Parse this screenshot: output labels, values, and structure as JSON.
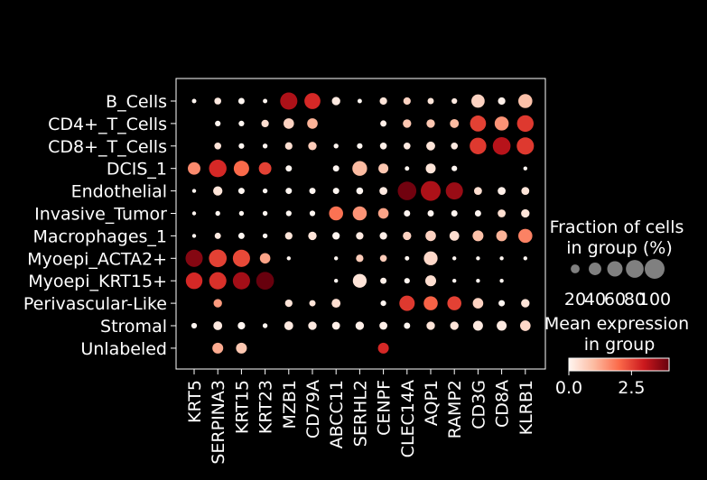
{
  "chart_data": {
    "type": "dotplot",
    "genes": [
      "KRT5",
      "SERPINA3",
      "KRT15",
      "KRT23",
      "MZB1",
      "CD79A",
      "ABCC11",
      "SERHL2",
      "CENPF",
      "CLEC14A",
      "AQP1",
      "RAMP2",
      "CD3G",
      "CD8A",
      "KLRB1"
    ],
    "groups": [
      "B_Cells",
      "CD4+_T_Cells",
      "CD8+_T_Cells",
      "DCIS_1",
      "Endothelial",
      "Invasive_Tumor",
      "Macrophages_1",
      "Myoepi_ACTA2+",
      "Myoepi_KRT15+",
      "Perivascular-Like",
      "Stromal",
      "Unlabeled"
    ],
    "fraction_pct": [
      [
        5,
        12,
        10,
        5,
        75,
        65,
        18,
        5,
        14,
        14,
        10,
        8,
        45,
        14,
        50
      ],
      [
        0,
        8,
        8,
        14,
        28,
        28,
        0,
        0,
        10,
        18,
        18,
        20,
        65,
        50,
        70
      ],
      [
        0,
        12,
        8,
        6,
        14,
        18,
        6,
        8,
        12,
        12,
        20,
        12,
        70,
        80,
        75
      ],
      [
        40,
        78,
        60,
        40,
        10,
        0,
        10,
        55,
        25,
        5,
        25,
        8,
        0,
        0,
        4
      ],
      [
        4,
        22,
        10,
        6,
        10,
        10,
        10,
        12,
        16,
        88,
        100,
        75,
        16,
        16,
        16
      ],
      [
        4,
        6,
        6,
        6,
        8,
        8,
        50,
        50,
        28,
        10,
        10,
        10,
        10,
        16,
        18
      ],
      [
        4,
        10,
        10,
        6,
        14,
        18,
        14,
        14,
        14,
        18,
        28,
        24,
        30,
        30,
        50
      ],
      [
        75,
        80,
        75,
        28,
        4,
        0,
        4,
        14,
        12,
        5,
        48,
        4,
        4,
        4,
        4
      ],
      [
        70,
        75,
        75,
        80,
        0,
        0,
        4,
        48,
        10,
        8,
        30,
        4,
        4,
        4,
        0
      ],
      [
        0,
        18,
        0,
        0,
        14,
        10,
        20,
        0,
        8,
        60,
        50,
        50,
        28,
        10,
        18
      ],
      [
        8,
        20,
        14,
        6,
        20,
        18,
        16,
        18,
        16,
        10,
        18,
        18,
        25,
        25,
        28
      ],
      [
        0,
        30,
        30,
        0,
        0,
        0,
        0,
        0,
        30,
        0,
        0,
        0,
        0,
        0,
        0
      ]
    ],
    "mean_expression": [
      [
        0,
        0.2,
        0,
        0,
        3.3,
        2.8,
        0.2,
        0,
        0.3,
        0.6,
        0.3,
        0.2,
        0.6,
        0.1,
        0.9
      ],
      [
        0,
        0,
        0,
        0.4,
        0.6,
        1.1,
        0,
        0,
        0.1,
        0.8,
        0.8,
        1.0,
        2.5,
        1.5,
        2.6
      ],
      [
        0,
        0.3,
        0,
        0,
        0.4,
        0.7,
        0,
        0,
        0.1,
        0.2,
        0.3,
        0.2,
        2.6,
        3.2,
        2.6
      ],
      [
        1.6,
        2.8,
        2.0,
        2.5,
        0,
        0,
        0,
        1.0,
        0.8,
        0,
        0.3,
        0,
        0,
        0,
        0
      ],
      [
        0,
        0.3,
        0,
        0,
        0,
        0,
        0,
        0,
        0.2,
        3.9,
        3.3,
        3.5,
        0.4,
        0.1,
        0.3
      ],
      [
        0,
        0,
        0,
        0,
        0,
        0,
        1.9,
        1.5,
        1.3,
        0,
        0,
        0,
        0,
        0.4,
        0.3
      ],
      [
        0,
        0.2,
        0,
        0,
        0.3,
        0.3,
        0,
        0.2,
        0.1,
        0.6,
        0.6,
        0.4,
        0.9,
        1.1,
        1.7
      ],
      [
        3.7,
        2.5,
        2.4,
        1.3,
        0,
        0,
        0,
        0.7,
        0.7,
        0,
        0.5,
        0,
        0,
        0,
        0
      ],
      [
        2.8,
        2.7,
        3.4,
        4.0,
        0,
        0,
        0,
        0.3,
        0.1,
        0,
        0.4,
        0,
        0,
        0,
        0
      ],
      [
        0,
        1.4,
        0,
        0,
        0.3,
        0.3,
        0.4,
        0,
        0,
        2.6,
        2.1,
        2.5,
        0.6,
        0,
        0.3
      ],
      [
        0,
        0.2,
        0,
        0,
        0.2,
        0.2,
        0.1,
        0.1,
        0.1,
        0,
        0.3,
        0.3,
        0.2,
        0.2,
        0.5
      ],
      [
        0,
        1.2,
        0.8,
        0,
        0,
        0,
        0,
        0,
        2.8,
        0,
        0,
        0,
        0,
        0,
        0
      ]
    ],
    "size_legend": {
      "title": "Fraction of cells\nin group (%)",
      "values": [
        20,
        40,
        60,
        80,
        100
      ],
      "labels": [
        "20",
        "40",
        "60",
        "80",
        "100"
      ]
    },
    "color_legend": {
      "title": "Mean expression\nin group",
      "range": [
        0,
        4
      ],
      "ticks": [
        "0.0",
        "2.5"
      ],
      "tick_values": [
        0,
        2.5
      ]
    },
    "colormap": [
      "#fff5f0",
      "#fcbba1",
      "#fb6a4a",
      "#cb181d",
      "#67000d"
    ]
  }
}
